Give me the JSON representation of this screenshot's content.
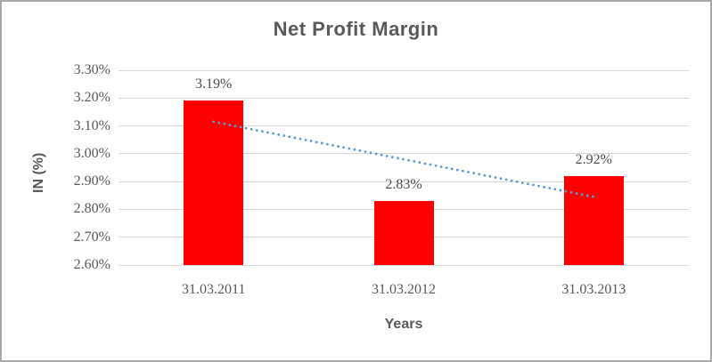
{
  "window": {
    "background": "#ffffff",
    "border_color": "#a9a9a9"
  },
  "chart_data": {
    "type": "bar",
    "title": "Net Profit Margin",
    "xlabel": "Years",
    "ylabel": "IN (%)",
    "categories": [
      "31.03.2011",
      "31.03.2012",
      "31.03.2013"
    ],
    "values": [
      3.19,
      2.83,
      2.92
    ],
    "value_labels": [
      "3.19%",
      "2.83%",
      "2.92%"
    ],
    "ylim": [
      2.6,
      3.3
    ],
    "ytick_step": 0.1,
    "ytick_labels_top_to_bottom": [
      "3.30%",
      "3.20%",
      "3.10%",
      "3.00%",
      "2.90%",
      "2.80%",
      "2.70%",
      "2.60%"
    ],
    "grid": true,
    "legend": "none",
    "bar_color": "#ff0000",
    "gridline_color": "#d9d9d9",
    "text_color": "#595959",
    "trendline": {
      "kind": "linear",
      "style": "dotted",
      "color": "#5b9bd5",
      "start_value": 3.115,
      "end_value": 2.845
    }
  }
}
